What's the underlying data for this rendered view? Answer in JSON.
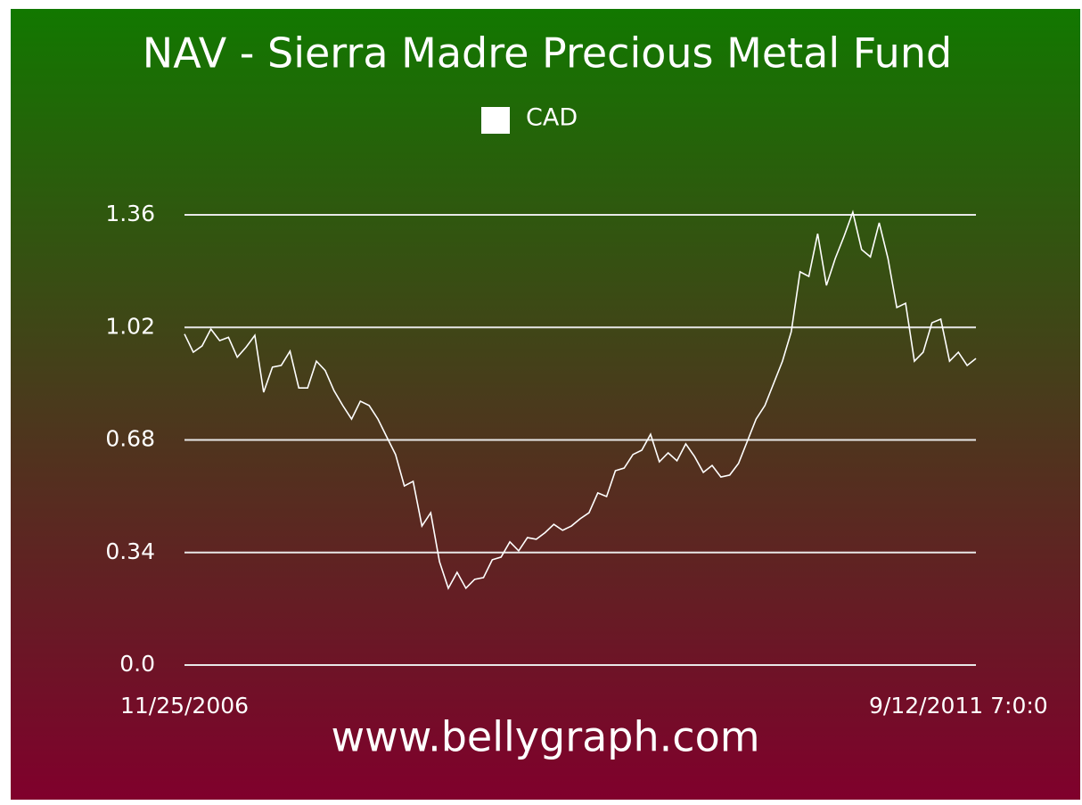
{
  "chart_data": {
    "type": "line",
    "title": "NAV - Sierra Madre Precious Metal Fund",
    "footer": "www.bellygraph.com",
    "categories": [
      "11/25/2006",
      null,
      null,
      null,
      null,
      null,
      null,
      null,
      null,
      null,
      null,
      null,
      null,
      null,
      null,
      null,
      null,
      null,
      null,
      null,
      null,
      null,
      null,
      null,
      null,
      null,
      null,
      null,
      null,
      null,
      null,
      null,
      null,
      null,
      null,
      null,
      null,
      null,
      null,
      null,
      null,
      null,
      null,
      null,
      null,
      null,
      null,
      null,
      null,
      null,
      null,
      null,
      null,
      null,
      null,
      null,
      null,
      null,
      null,
      null,
      null,
      null,
      null,
      null,
      null,
      null,
      null,
      null,
      null,
      null,
      null,
      null,
      null,
      null,
      null,
      null,
      null,
      null,
      null,
      null,
      null,
      null,
      null,
      null,
      null,
      null,
      null,
      null,
      null,
      null,
      "9/12/2011 7:0:0"
    ],
    "series": [
      {
        "name": "CAD",
        "color": "#ffffff",
        "values": [
          1.0,
          0.945,
          0.964,
          1.015,
          0.98,
          0.99,
          0.93,
          0.96,
          0.996,
          0.824,
          0.9,
          0.905,
          0.948,
          0.837,
          0.837,
          0.918,
          0.89,
          0.829,
          0.784,
          0.743,
          0.797,
          0.784,
          0.743,
          0.689,
          0.636,
          0.541,
          0.555,
          0.42,
          0.46,
          0.312,
          0.232,
          0.28,
          0.232,
          0.259,
          0.264,
          0.318,
          0.326,
          0.372,
          0.345,
          0.385,
          0.38,
          0.4,
          0.425,
          0.407,
          0.42,
          0.442,
          0.46,
          0.52,
          0.509,
          0.587,
          0.595,
          0.636,
          0.649,
          0.697,
          0.614,
          0.641,
          0.617,
          0.668,
          0.63,
          0.582,
          0.603,
          0.568,
          0.574,
          0.609,
          0.676,
          0.743,
          0.784,
          0.851,
          0.918,
          1.007,
          1.188,
          1.174,
          1.303,
          1.147,
          1.228,
          1.295,
          1.368,
          1.255,
          1.233,
          1.336,
          1.228,
          1.08,
          1.093,
          0.918,
          0.945,
          1.034,
          1.045,
          0.918,
          0.945,
          0.905,
          0.926
        ]
      }
    ],
    "ylim": [
      0,
      1.36
    ],
    "yticks": [
      {
        "value": 0,
        "label": "0.0"
      },
      0.34,
      0.68,
      1.02,
      1.36
    ],
    "grid": true,
    "legend": "top"
  }
}
